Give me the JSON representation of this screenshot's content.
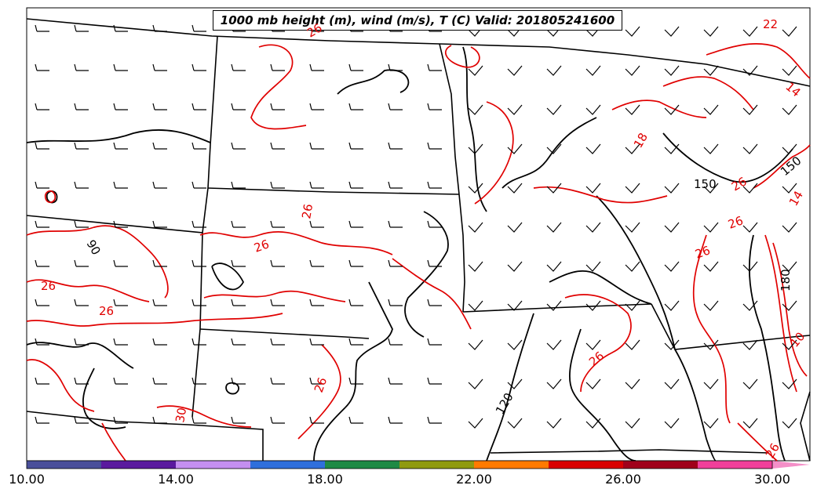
{
  "title": "1000 mb height (m), wind (m/s), T (C) Valid: 201805241600",
  "contour_labels": {
    "height": [
      "90",
      "120",
      "150",
      "150",
      "180"
    ],
    "temperature": [
      "26",
      "26",
      "26",
      "26",
      "26",
      "26",
      "26",
      "26",
      "30",
      "22",
      "14",
      "14",
      "18",
      "26",
      "26",
      "10",
      "26"
    ]
  },
  "colorbar": {
    "ticks": [
      "10.00",
      "14.00",
      "18.00",
      "22.00",
      "26.00",
      "30.00"
    ],
    "min": 10,
    "max": 32,
    "bins": [
      {
        "from": 10,
        "to": 12,
        "color": "#4a4f9a"
      },
      {
        "from": 12,
        "to": 14,
        "color": "#5a1a9e"
      },
      {
        "from": 14,
        "to": 16,
        "color": "#c48ff0"
      },
      {
        "from": 16,
        "to": 18,
        "color": "#2f6fdc"
      },
      {
        "from": 18,
        "to": 20,
        "color": "#1f8a45"
      },
      {
        "from": 20,
        "to": 22,
        "color": "#8f9a10"
      },
      {
        "from": 22,
        "to": 24,
        "color": "#ff7a00"
      },
      {
        "from": 24,
        "to": 26,
        "color": "#d90000"
      },
      {
        "from": 26,
        "to": 28,
        "color": "#a0001a"
      },
      {
        "from": 28,
        "to": 30,
        "color": "#f03f9a"
      }
    ],
    "extend_color": "#f48fc8"
  },
  "colors": {
    "height_contour": "#000000",
    "temperature_contour": "#e00000",
    "state_border": "#000000",
    "background": "#ffffff"
  },
  "legend": "colorbar-bottom"
}
